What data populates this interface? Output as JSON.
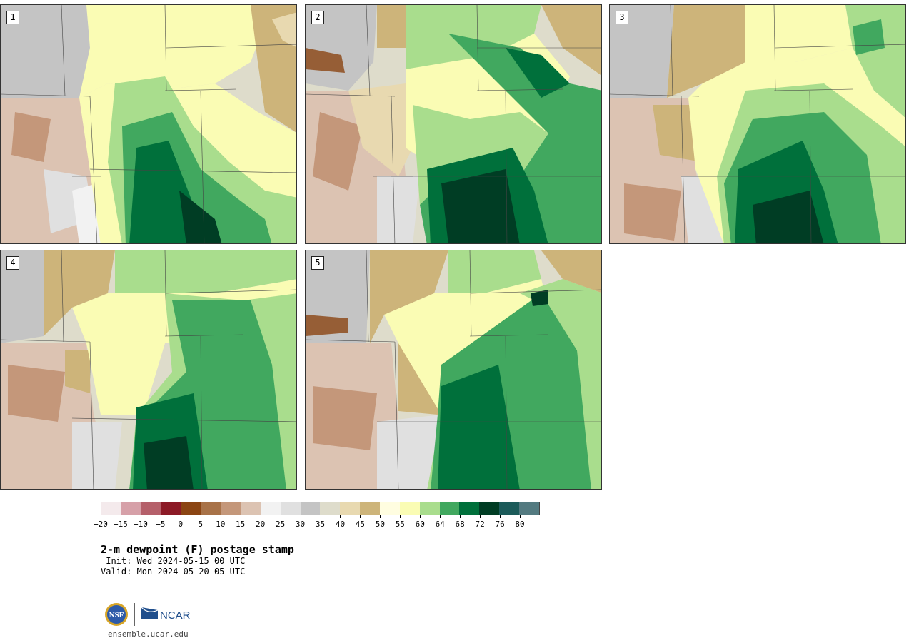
{
  "panels": [
    {
      "label": "1"
    },
    {
      "label": "2"
    },
    {
      "label": "3"
    },
    {
      "label": "4"
    },
    {
      "label": "5"
    }
  ],
  "colorbar": {
    "colors": [
      "#f4eaec",
      "#d6a0a8",
      "#b5606a",
      "#8c1a26",
      "#8b4513",
      "#a87248",
      "#c4977a",
      "#dcc3b2",
      "#f2f2f2",
      "#e0e0e0",
      "#c4c4c4",
      "#dedccb",
      "#e8d9b0",
      "#cdb47a",
      "#fffde0",
      "#fafcb4",
      "#a9dd8d",
      "#41a85f",
      "#00703b",
      "#003d24",
      "#1c5b5a",
      "#537a80"
    ],
    "tick_labels": [
      "−20",
      "−15",
      "−10",
      "−5",
      "0",
      "5",
      "10",
      "15",
      "20",
      "25",
      "30",
      "35",
      "40",
      "45",
      "50",
      "55",
      "60",
      "64",
      "68",
      "72",
      "76",
      "80"
    ]
  },
  "title": "2-m dewpoint (F) postage stamp",
  "init": " Init: Wed 2024-05-15 00 UTC",
  "valid": "Valid: Mon 2024-05-20 05 UTC",
  "logos": {
    "nsf": "NSF",
    "ncar": "NCAR"
  },
  "url": "ensemble.ucar.edu"
}
